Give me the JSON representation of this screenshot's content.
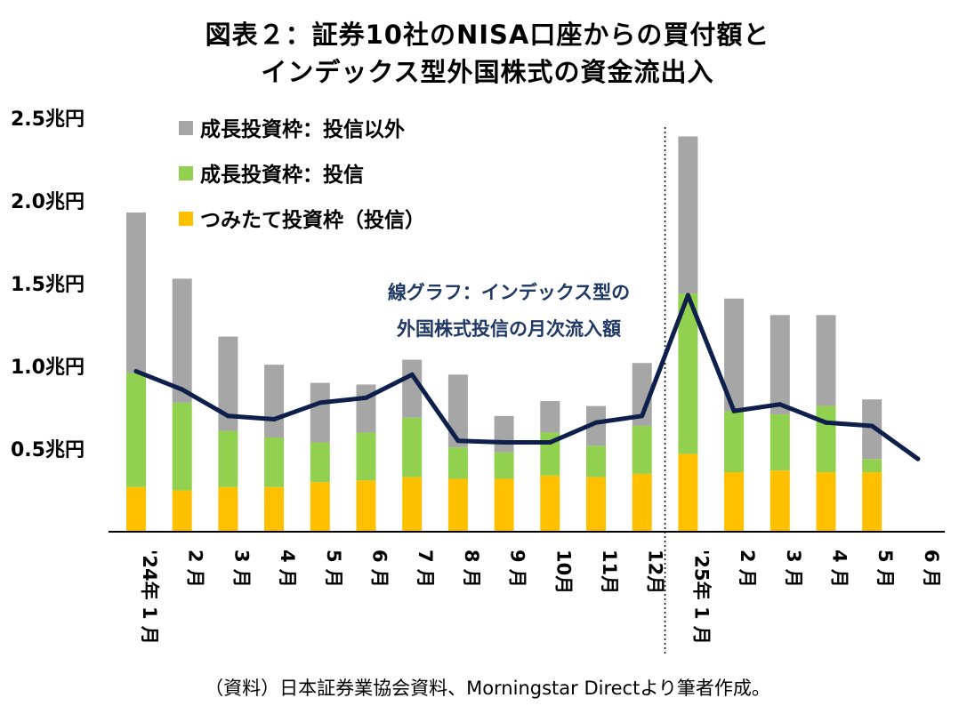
{
  "chart_data": {
    "type": "bar",
    "title_line1": "図表２：証券10社のNISA口座からの買付額と",
    "title_line2": "インデックス型外国株式の資金流出入",
    "caption": "（資料）日本証券業協会資料、Morningstar Directより筆者作成。",
    "y_ticks": [
      "2.5兆円",
      "2.0兆円",
      "1.5兆円",
      "1.0兆円",
      "0.5兆円"
    ],
    "y_tick_values": [
      2.5,
      2.0,
      1.5,
      1.0,
      0.5
    ],
    "ylim": [
      0,
      2.5
    ],
    "stacked": true,
    "categories": [
      "'24年 1 月",
      "2 月",
      "3 月",
      "4 月",
      "5 月",
      "6 月",
      "7 月",
      "8 月",
      "9 月",
      "10月",
      "11月",
      "12月",
      "'25年 1 月",
      "2 月",
      "3 月",
      "4 月",
      "5 月",
      "6 月"
    ],
    "series": [
      {
        "name": "つみたて投資枠（投信）",
        "color": "#ffc000",
        "values": [
          0.27,
          0.25,
          0.27,
          0.27,
          0.3,
          0.31,
          0.33,
          0.32,
          0.32,
          0.34,
          0.33,
          0.35,
          0.47,
          0.36,
          0.37,
          0.36,
          0.36,
          0
        ]
      },
      {
        "name": "成長投資枠：投信",
        "color": "#92d050",
        "values": [
          0.69,
          0.53,
          0.34,
          0.3,
          0.24,
          0.29,
          0.36,
          0.19,
          0.16,
          0.26,
          0.19,
          0.29,
          0.97,
          0.37,
          0.34,
          0.4,
          0.08,
          0
        ]
      },
      {
        "name": "成長投資枠：投信以外",
        "color": "#a6a6a6",
        "values": [
          0.97,
          0.75,
          0.57,
          0.44,
          0.36,
          0.29,
          0.35,
          0.44,
          0.22,
          0.19,
          0.24,
          0.38,
          0.95,
          0.68,
          0.6,
          0.55,
          0.36,
          0
        ]
      }
    ],
    "legend": [
      "成長投資枠：投信以外",
      "成長投資枠：投信",
      "つみたて投資枠（投信）"
    ],
    "line": {
      "name": "線グラフ：インデックス型の外国株式投信の月次流入額",
      "label_line1": "線グラフ：インデックス型の",
      "label_line2": "外国株式投信の月次流入額",
      "color": "#0d1f4a",
      "values": [
        0.97,
        0.86,
        0.7,
        0.68,
        0.78,
        0.81,
        0.95,
        0.55,
        0.54,
        0.54,
        0.66,
        0.7,
        1.43,
        0.73,
        0.77,
        0.66,
        0.64,
        0.44
      ]
    },
    "divider_after_index": 11
  }
}
